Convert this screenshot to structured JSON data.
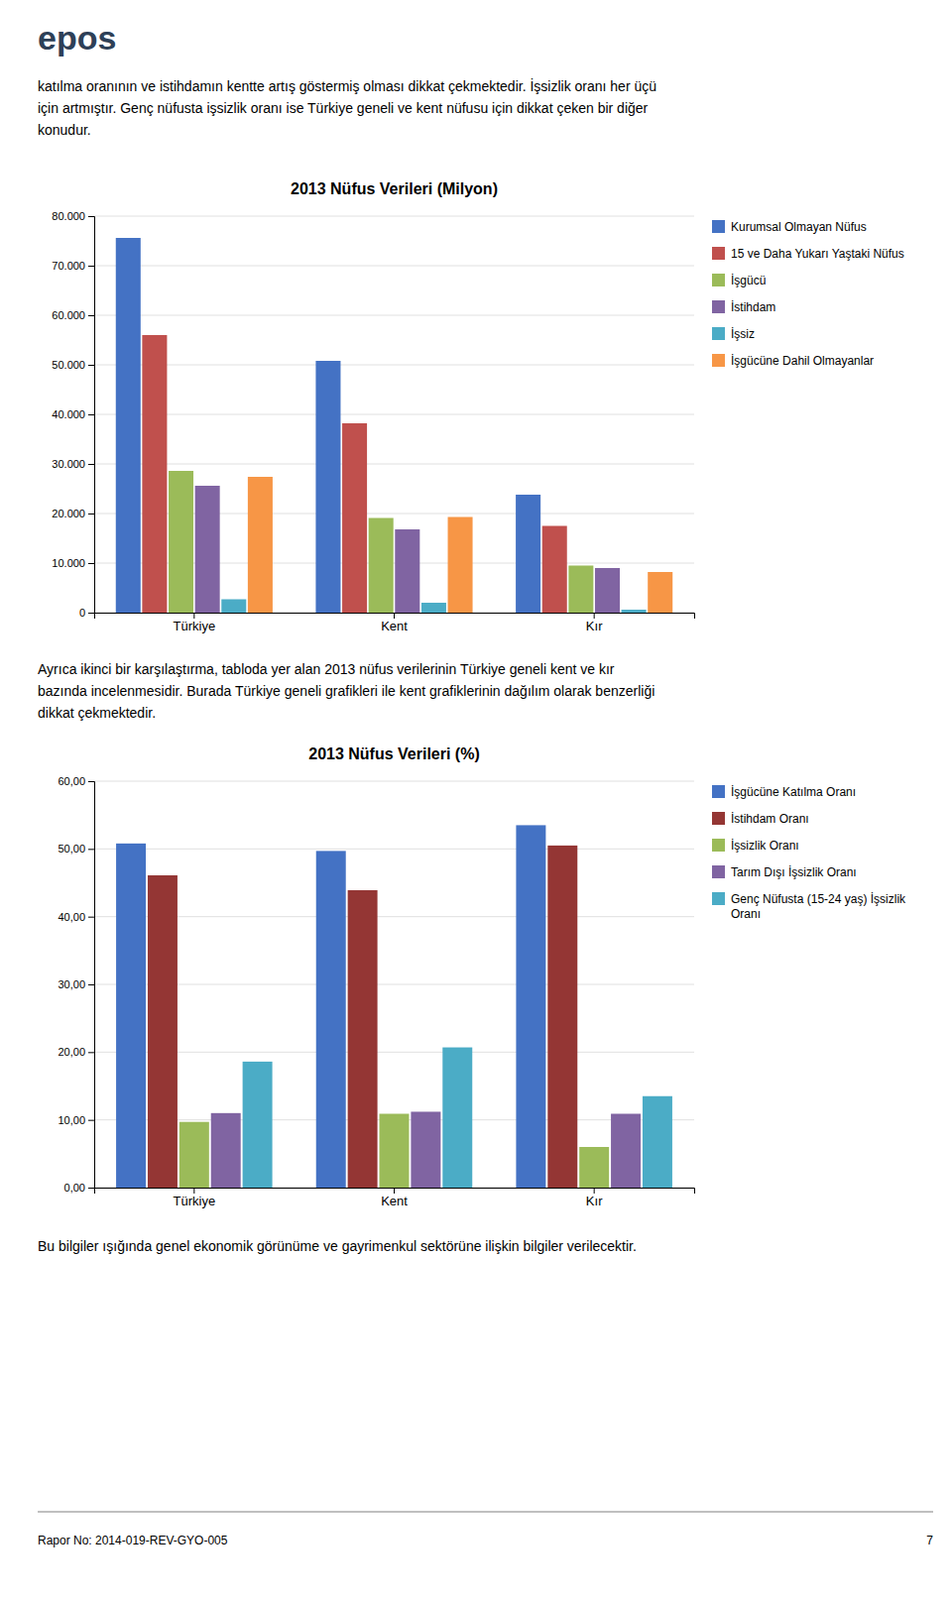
{
  "logo": "epos",
  "text1_lines": [
    "katılma oranının ve istihdamın kentte artış göstermiş olması dikkat çekmektedir. İşsizlik oranı her üçü",
    "için artmıştır. Genç nüfusta işsizlik oranı ise Türkiye geneli ve kent nüfusu için dikkat çeken bir diğer",
    "konudur."
  ],
  "text2_lines": [
    "Ayrıca ikinci bir karşılaştırma, tabloda yer alan 2013 nüfus verilerinin Türkiye geneli kent ve kır",
    "bazında incelenmesidir. Burada Türkiye geneli grafikleri ile kent grafiklerinin dağılım olarak benzerliği",
    "dikkat çekmektedir."
  ],
  "text3": "Bu bilgiler ışığında genel ekonomik görünüme ve gayrimenkul sektörüne ilişkin bilgiler verilecektir.",
  "footer": "Rapor No: 2014-019-REV-GYO-005",
  "page_number": "7",
  "chart_data": [
    {
      "type": "bar",
      "title": "2013 Nüfus Verileri (Milyon)",
      "categories": [
        "Türkiye",
        "Kent",
        "Kır"
      ],
      "series": [
        {
          "name": "Kurumsal Olmayan Nüfus",
          "color": "#4472C4",
          "values": [
            75600,
            50800,
            23800
          ]
        },
        {
          "name": "15 ve Daha Yukarı Yaştaki Nüfus",
          "color": "#C0504D",
          "values": [
            56000,
            38200,
            17500
          ]
        },
        {
          "name": "İşgücü",
          "color": "#9BBB59",
          "values": [
            28600,
            19100,
            9500
          ]
        },
        {
          "name": "İstihdam",
          "color": "#8064A2",
          "values": [
            25600,
            16800,
            9000
          ]
        },
        {
          "name": "İşsiz",
          "color": "#4BACC6",
          "values": [
            2700,
            2000,
            600
          ]
        },
        {
          "name": "İşgücüne Dahil Olmayanlar",
          "color": "#F79646",
          "values": [
            27400,
            19300,
            8200
          ]
        }
      ],
      "ylim": [
        0,
        80000
      ],
      "yticks": [
        0,
        {
          "value": 10000,
          "label": "10.000"
        },
        {
          "value": 20000,
          "label": "20.000"
        },
        {
          "value": 30000,
          "label": "30.000"
        },
        {
          "value": 40000,
          "label": "40.000"
        },
        {
          "value": 50000,
          "label": "50.000"
        },
        {
          "value": 60000,
          "label": "60.000"
        },
        {
          "value": 70000,
          "label": "70.000"
        },
        {
          "value": 80000,
          "label": "80.000"
        }
      ],
      "grid": true,
      "legend": "right"
    },
    {
      "type": "bar",
      "title": "2013 Nüfus Verileri (%)",
      "categories": [
        "Türkiye",
        "Kent",
        "Kır"
      ],
      "series": [
        {
          "name": "İşgücüne Katılma Oranı",
          "color": "#4472C4",
          "values": [
            50.8,
            49.7,
            53.5
          ]
        },
        {
          "name": "İstihdam Oranı",
          "color": "#943634",
          "values": [
            46.1,
            43.9,
            50.5
          ]
        },
        {
          "name": "İşsizlik Oranı",
          "color": "#9BBB59",
          "values": [
            9.7,
            10.9,
            6.0
          ]
        },
        {
          "name": "Tarım Dışı İşsizlik Oranı",
          "color": "#8064A2",
          "values": [
            11.0,
            11.2,
            10.9
          ]
        },
        {
          "name": "Genç Nüfusta (15-24 yaş) İşsizlik\nOranı",
          "color": "#4BACC6",
          "values": [
            18.6,
            20.7,
            13.5
          ]
        }
      ],
      "ylim": [
        0,
        60
      ],
      "yticks": [
        {
          "value": 0,
          "label": "0,00"
        },
        {
          "value": 10,
          "label": "10,00"
        },
        {
          "value": 20,
          "label": "20,00"
        },
        {
          "value": 30,
          "label": "30,00"
        },
        {
          "value": 40,
          "label": "40,00"
        },
        {
          "value": 50,
          "label": "50,00"
        },
        {
          "value": 60,
          "label": "60,00"
        }
      ],
      "grid": true,
      "legend": "right"
    }
  ]
}
